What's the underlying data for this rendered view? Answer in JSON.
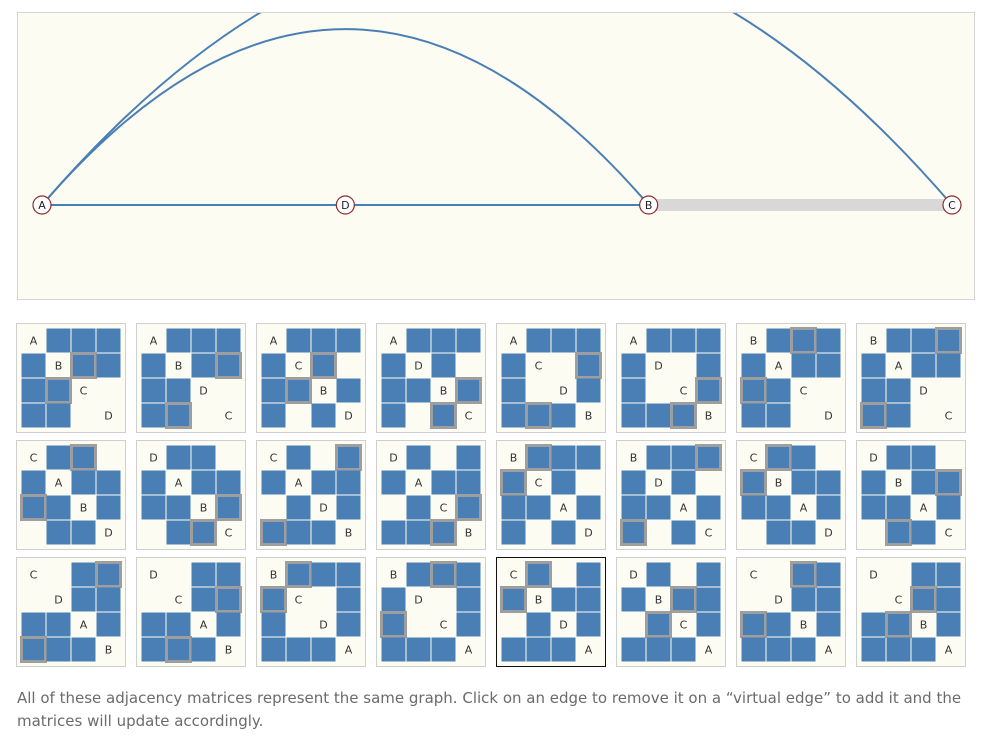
{
  "graph": {
    "nodes": [
      {
        "id": "A",
        "label": "A"
      },
      {
        "id": "D",
        "label": "D"
      },
      {
        "id": "B",
        "label": "B"
      },
      {
        "id": "C",
        "label": "C"
      }
    ],
    "edges": [
      {
        "source": "A",
        "target": "D",
        "kind": "edge"
      },
      {
        "source": "D",
        "target": "B",
        "kind": "edge"
      },
      {
        "source": "A",
        "target": "B",
        "kind": "edge"
      },
      {
        "source": "A",
        "target": "C",
        "kind": "edge"
      },
      {
        "source": "B",
        "target": "C",
        "kind": "edge"
      },
      {
        "source": "B",
        "target": "C",
        "kind": "virtual-edge"
      }
    ],
    "colors": {
      "edge": "#4a7fb5",
      "virtual": "#d8d8d8",
      "background": "#fdfcf3",
      "node_stroke": "#8b2b2b",
      "cell": "#4a7fb5",
      "highlight": "#9e9e9e"
    }
  },
  "matrices": [
    {
      "order": [
        "A",
        "B",
        "C",
        "D"
      ]
    },
    {
      "order": [
        "A",
        "B",
        "D",
        "C"
      ]
    },
    {
      "order": [
        "A",
        "C",
        "B",
        "D"
      ]
    },
    {
      "order": [
        "A",
        "D",
        "B",
        "C"
      ]
    },
    {
      "order": [
        "A",
        "C",
        "D",
        "B"
      ]
    },
    {
      "order": [
        "A",
        "D",
        "C",
        "B"
      ]
    },
    {
      "order": [
        "B",
        "A",
        "C",
        "D"
      ]
    },
    {
      "order": [
        "B",
        "A",
        "D",
        "C"
      ]
    },
    {
      "order": [
        "C",
        "A",
        "B",
        "D"
      ]
    },
    {
      "order": [
        "D",
        "A",
        "B",
        "C"
      ]
    },
    {
      "order": [
        "C",
        "A",
        "D",
        "B"
      ]
    },
    {
      "order": [
        "D",
        "A",
        "C",
        "B"
      ]
    },
    {
      "order": [
        "B",
        "C",
        "A",
        "D"
      ]
    },
    {
      "order": [
        "B",
        "D",
        "A",
        "C"
      ]
    },
    {
      "order": [
        "C",
        "B",
        "A",
        "D"
      ]
    },
    {
      "order": [
        "D",
        "B",
        "A",
        "C"
      ]
    },
    {
      "order": [
        "C",
        "D",
        "A",
        "B"
      ]
    },
    {
      "order": [
        "D",
        "C",
        "A",
        "B"
      ]
    },
    {
      "order": [
        "B",
        "C",
        "D",
        "A"
      ]
    },
    {
      "order": [
        "B",
        "D",
        "C",
        "A"
      ]
    },
    {
      "order": [
        "C",
        "B",
        "D",
        "A"
      ],
      "selected": true
    },
    {
      "order": [
        "D",
        "B",
        "C",
        "A"
      ]
    },
    {
      "order": [
        "C",
        "D",
        "B",
        "A"
      ]
    },
    {
      "order": [
        "D",
        "C",
        "B",
        "A"
      ]
    }
  ],
  "caption": "All of these adjacency matrices represent the same graph. Click on an edge to remove it on a “virtual edge” to add it and the matrices will update accordingly."
}
